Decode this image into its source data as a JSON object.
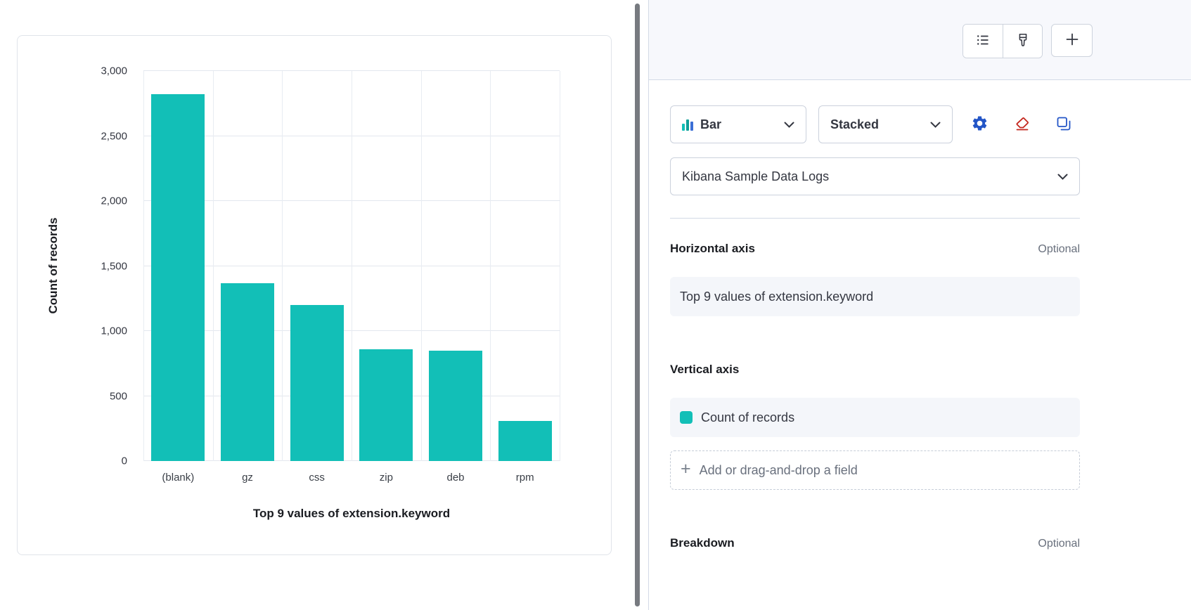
{
  "chart_data": {
    "type": "bar",
    "categories": [
      "(blank)",
      "gz",
      "css",
      "zip",
      "deb",
      "rpm"
    ],
    "values": [
      2820,
      1370,
      1200,
      860,
      850,
      310
    ],
    "title": "",
    "xlabel": "Top 9 values of extension.keyword",
    "ylabel": "Count of records",
    "ylim": [
      0,
      3000
    ],
    "yticks": [
      0,
      500,
      1000,
      1500,
      2000,
      2500,
      3000
    ],
    "ytick_labels": [
      "0",
      "500",
      "1,000",
      "1,500",
      "2,000",
      "2,500",
      "3,000"
    ],
    "bar_color": "#12BFB7",
    "grid": true,
    "legend_position": "none"
  },
  "panel": {
    "chart_type_select": {
      "label": "Bar"
    },
    "display_mode_select": {
      "label": "Stacked"
    },
    "data_view_select": {
      "label": "Kibana Sample Data Logs"
    },
    "horizontal_axis": {
      "heading": "Horizontal axis",
      "optional_label": "Optional",
      "field_label": "Top 9 values of extension.keyword"
    },
    "vertical_axis": {
      "heading": "Vertical axis",
      "field_label": "Count of records",
      "swatch_color": "#12BFB7",
      "add_plus": "+",
      "add_placeholder": "Add or drag-and-drop a field"
    },
    "breakdown": {
      "heading": "Breakdown",
      "optional_label": "Optional"
    },
    "icons": {
      "toolbar": [
        "list-icon",
        "brush-icon",
        "plus-icon"
      ],
      "row": [
        "bar-chart-icon",
        "chevron-down-icon",
        "gear-icon",
        "eraser-icon",
        "copy-icon"
      ]
    },
    "colors": {
      "accent_teal": "#12BFB7",
      "primary_blue": "#2456C7",
      "danger_red": "#C4261D",
      "muted_text": "#69707D"
    }
  }
}
